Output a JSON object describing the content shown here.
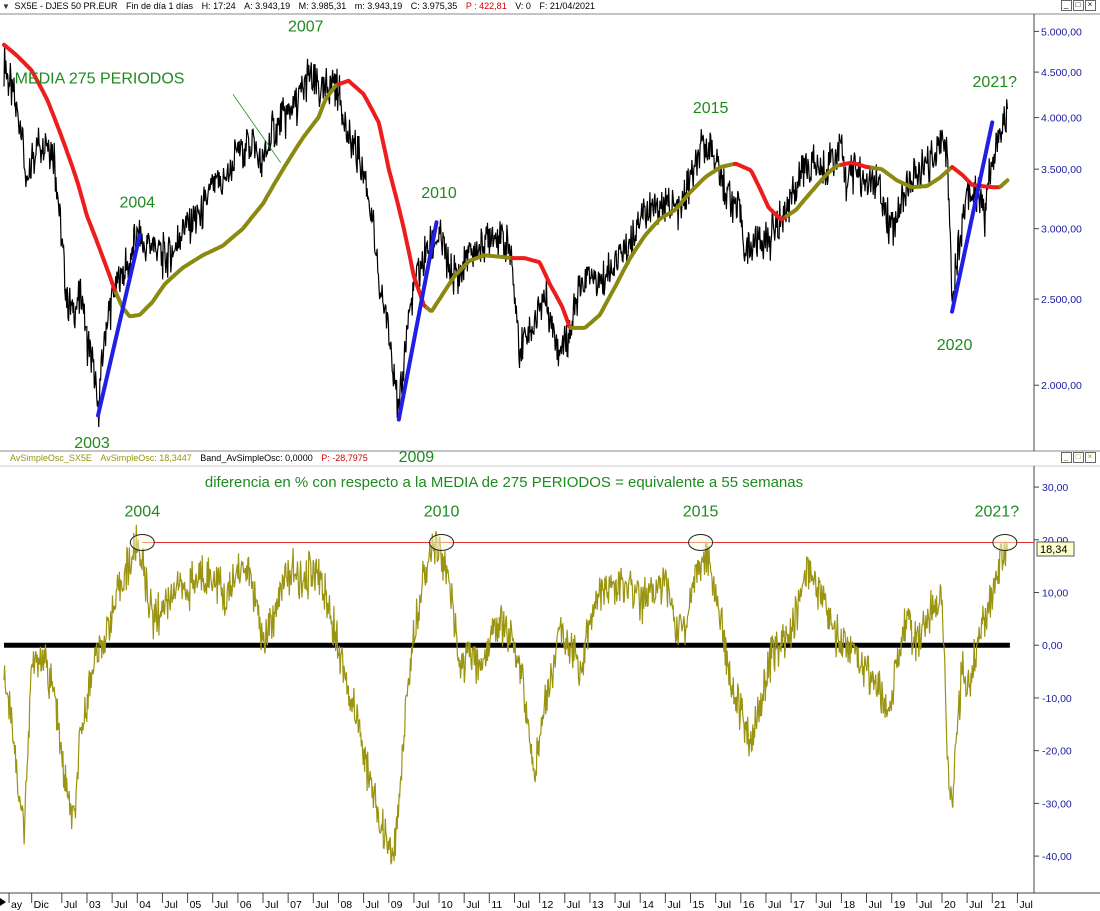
{
  "top_header": {
    "symbol": "SX5E - DJES 50 PR.EUR",
    "period": "Fin de día 1 días",
    "h": "H: 17:24",
    "a": "A: 3.943,19",
    "m": "M: 3.985,31",
    "mm": "m: 3.943,19",
    "c": "C: 3.975,35",
    "p": "P : 422,81",
    "v": "V: 0",
    "f": "F: 21/04/2021"
  },
  "bottom_header": {
    "name": "AvSimpleOsc_SX5E",
    "value_label": "AvSimpleOsc: 18,3447",
    "band": "Band_AvSimpleOsc: 0,0000",
    "p": "P: -28,7975"
  },
  "window_controls": [
    "_",
    "□",
    "×"
  ],
  "colors": {
    "price": "#000000",
    "ma_rising": "#8b8a10",
    "ma_falling": "#ee1c1c",
    "trendline": "#1f1fe6",
    "osc": "#9a9410",
    "annot_text": "#1f8a1f",
    "axis_text": "#1a1aa0",
    "zero_line": "#000000",
    "threshold": "#e03030"
  },
  "chart_data": [
    {
      "type": "line",
      "scale": "log",
      "yticks": [
        "5.000,00",
        "4.500,00",
        "4.000,00",
        "3.500,00",
        "3.000,00",
        "2.500,00",
        "2.000,00"
      ],
      "ytick_values": [
        5000,
        4500,
        4000,
        3500,
        3000,
        2500,
        2000
      ],
      "ylim": [
        1700,
        5150
      ],
      "series": [
        {
          "name": "SX5E",
          "x": [
            2001.35,
            2001.5,
            2001.7,
            2001.8,
            2001.9,
            2002.0,
            2002.2,
            2002.35,
            2002.5,
            2002.6,
            2002.75,
            2002.9,
            2003.0,
            2003.1,
            2003.22,
            2003.35,
            2003.5,
            2003.65,
            2003.8,
            2004.0,
            2004.15,
            2004.3,
            2004.5,
            2004.7,
            2004.85,
            2005.0,
            2005.25,
            2005.5,
            2005.75,
            2006.0,
            2006.3,
            2006.45,
            2006.7,
            2007.0,
            2007.2,
            2007.4,
            2007.55,
            2007.7,
            2007.85,
            2008.0,
            2008.2,
            2008.4,
            2008.6,
            2008.8,
            2008.95,
            2009.1,
            2009.2,
            2009.4,
            2009.6,
            2009.8,
            2010.0,
            2010.2,
            2010.4,
            2010.6,
            2010.8,
            2011.0,
            2011.2,
            2011.4,
            2011.6,
            2011.75,
            2011.9,
            2012.1,
            2012.25,
            2012.4,
            2012.6,
            2012.8,
            2013.0,
            2013.2,
            2013.5,
            2013.8,
            2014.0,
            2014.2,
            2014.5,
            2014.8,
            2015.0,
            2015.2,
            2015.35,
            2015.5,
            2015.65,
            2015.8,
            2016.0,
            2016.1,
            2016.3,
            2016.5,
            2016.7,
            2016.9,
            2017.0,
            2017.2,
            2017.35,
            2017.6,
            2017.8,
            2018.0,
            2018.1,
            2018.3,
            2018.5,
            2018.7,
            2018.9,
            2019.0,
            2019.3,
            2019.5,
            2019.7,
            2019.9,
            2020.0,
            2020.1,
            2020.2,
            2020.3,
            2020.5,
            2020.7,
            2020.85,
            2020.95,
            2021.05,
            2021.15,
            2021.3
          ],
          "y": [
            4600,
            4300,
            3950,
            3300,
            3600,
            3700,
            3800,
            3600,
            2900,
            2500,
            2400,
            2550,
            2250,
            2150,
            1850,
            2250,
            2500,
            2650,
            2700,
            2950,
            2850,
            2900,
            2800,
            2800,
            2950,
            3050,
            3100,
            3350,
            3400,
            3650,
            3800,
            3500,
            3850,
            4050,
            4150,
            4450,
            4350,
            4250,
            4400,
            4300,
            3800,
            3600,
            3300,
            2600,
            2400,
            2100,
            1850,
            2400,
            2700,
            2850,
            2950,
            2700,
            2650,
            2800,
            2850,
            2950,
            2950,
            2850,
            2200,
            2300,
            2350,
            2550,
            2350,
            2200,
            2300,
            2550,
            2650,
            2600,
            2750,
            2900,
            3100,
            3150,
            3200,
            3150,
            3400,
            3650,
            3750,
            3600,
            3350,
            3250,
            3100,
            2800,
            2950,
            2900,
            3000,
            3150,
            3300,
            3450,
            3550,
            3500,
            3600,
            3700,
            3400,
            3500,
            3350,
            3350,
            3100,
            3000,
            3350,
            3450,
            3500,
            3700,
            3800,
            3650,
            2500,
            2800,
            3300,
            3300,
            3100,
            3500,
            3600,
            3850,
            4000
          ]
        },
        {
          "name": "MEDIA 275 PERIODOS",
          "x": [
            2001.35,
            2001.6,
            2001.9,
            2002.2,
            2002.5,
            2002.8,
            2003.0,
            2003.3,
            2003.55,
            2003.7,
            2003.85,
            2004.05,
            2004.3,
            2004.55,
            2004.9,
            2005.3,
            2005.7,
            2006.1,
            2006.5,
            2006.9,
            2007.3,
            2007.6,
            2007.75,
            2007.95,
            2008.2,
            2008.5,
            2008.8,
            2009.0,
            2009.3,
            2009.5,
            2009.7,
            2009.85,
            2010.05,
            2010.3,
            2010.6,
            2010.9,
            2011.2,
            2011.45,
            2011.7,
            2012.0,
            2012.2,
            2012.45,
            2012.6,
            2012.9,
            2013.2,
            2013.5,
            2013.8,
            2014.1,
            2014.4,
            2014.7,
            2015.0,
            2015.3,
            2015.6,
            2015.9,
            2016.2,
            2016.4,
            2016.55,
            2016.8,
            2017.1,
            2017.4,
            2017.7,
            2017.9,
            2018.2,
            2018.5,
            2018.8,
            2019.1,
            2019.4,
            2019.7,
            2019.95,
            2020.2,
            2020.4,
            2020.6,
            2020.8,
            2021.0,
            2021.15,
            2021.3
          ],
          "y": [
            4830,
            4700,
            4520,
            4200,
            3800,
            3400,
            3100,
            2800,
            2560,
            2450,
            2390,
            2400,
            2480,
            2600,
            2710,
            2800,
            2870,
            3000,
            3200,
            3500,
            3800,
            4000,
            4200,
            4350,
            4400,
            4250,
            3950,
            3500,
            3000,
            2650,
            2460,
            2420,
            2520,
            2650,
            2760,
            2800,
            2790,
            2780,
            2780,
            2750,
            2600,
            2450,
            2320,
            2320,
            2400,
            2580,
            2780,
            2950,
            3080,
            3150,
            3300,
            3430,
            3520,
            3550,
            3490,
            3310,
            3170,
            3070,
            3150,
            3300,
            3450,
            3530,
            3560,
            3520,
            3500,
            3400,
            3340,
            3350,
            3420,
            3520,
            3450,
            3360,
            3350,
            3340,
            3340,
            3400
          ],
          "falling_ranges": [
            [
              2001.35,
              2003.55
            ],
            [
              2008.0,
              2009.75
            ],
            [
              2011.45,
              2012.6
            ],
            [
              2015.85,
              2016.9
            ],
            [
              2018.0,
              2018.6
            ],
            [
              2020.2,
              2021.15
            ]
          ]
        }
      ],
      "trendlines": [
        {
          "label": "2003",
          "x": [
            2003.22,
            2004.05
          ],
          "y": [
            1850,
            2950
          ]
        },
        {
          "label": "2009",
          "x": [
            2009.2,
            2009.95
          ],
          "y": [
            1830,
            3050
          ]
        },
        {
          "label": "2020",
          "x": [
            2020.2,
            2021.0
          ],
          "y": [
            2420,
            3950
          ]
        }
      ],
      "annotations": [
        {
          "text": "2007",
          "x": 2007.35,
          "y": 5000
        },
        {
          "text": "MEDIA 275 PERIODOS",
          "x": 2003.25,
          "y": 4370
        },
        {
          "text": "2021?",
          "x": 2021.05,
          "y": 4330
        },
        {
          "text": "2015",
          "x": 2015.4,
          "y": 4050
        },
        {
          "text": "2004",
          "x": 2004.0,
          "y": 3170
        },
        {
          "text": "2010",
          "x": 2010.0,
          "y": 3250
        },
        {
          "text": "2020",
          "x": 2020.25,
          "y": 2190
        },
        {
          "text": "2003",
          "x": 2003.1,
          "y": 1700
        },
        {
          "text": "2009",
          "x": 2009.55,
          "y": 1640
        }
      ]
    },
    {
      "type": "line",
      "title": "diferencia en % con respecto a la MEDIA de 275 PERIODOS = equivalente a 55 semanas",
      "yticks": [
        "30,00",
        "20,00",
        "10,00",
        "0,00",
        "-10,00",
        "-20,00",
        "-30,00",
        "-40,00"
      ],
      "ytick_values": [
        30,
        20,
        10,
        0,
        -10,
        -20,
        -30,
        -40
      ],
      "ylim": [
        -47,
        34
      ],
      "current_value": "18,34",
      "zero_line": 0,
      "threshold": 19.5,
      "series": [
        {
          "name": "AvSimpleOsc_SX5E",
          "x": [
            2001.35,
            2001.5,
            2001.65,
            2001.75,
            2001.9,
            2002.0,
            2002.2,
            2002.35,
            2002.5,
            2002.65,
            2002.75,
            2002.85,
            2003.0,
            2003.15,
            2003.3,
            2003.5,
            2003.7,
            2003.9,
            2004.0,
            2004.1,
            2004.2,
            2004.3,
            2004.45,
            2004.6,
            2004.8,
            2005.0,
            2005.2,
            2005.5,
            2005.75,
            2006.0,
            2006.2,
            2006.35,
            2006.5,
            2006.7,
            2006.9,
            2007.1,
            2007.3,
            2007.5,
            2007.65,
            2007.8,
            2008.0,
            2008.2,
            2008.4,
            2008.6,
            2008.8,
            2009.0,
            2009.1,
            2009.2,
            2009.35,
            2009.5,
            2009.65,
            2009.8,
            2009.95,
            2010.1,
            2010.25,
            2010.4,
            2010.6,
            2010.8,
            2011.0,
            2011.2,
            2011.4,
            2011.6,
            2011.75,
            2011.9,
            2012.1,
            2012.25,
            2012.4,
            2012.6,
            2012.8,
            2013.0,
            2013.2,
            2013.5,
            2013.8,
            2014.0,
            2014.2,
            2014.5,
            2014.7,
            2014.9,
            2015.1,
            2015.3,
            2015.45,
            2015.6,
            2015.75,
            2015.9,
            2016.05,
            2016.2,
            2016.4,
            2016.6,
            2016.8,
            2017.0,
            2017.15,
            2017.3,
            2017.5,
            2017.7,
            2017.9,
            2018.1,
            2018.3,
            2018.5,
            2018.7,
            2018.9,
            2019.1,
            2019.3,
            2019.5,
            2019.7,
            2019.9,
            2020.0,
            2020.1,
            2020.2,
            2020.3,
            2020.4,
            2020.55,
            2020.7,
            2020.85,
            2021.0,
            2021.15,
            2021.3
          ],
          "y": [
            -6,
            -12,
            -28,
            -35,
            -5,
            -2,
            -4,
            -10,
            -22,
            -30,
            -33,
            -20,
            -10,
            -3,
            0,
            6,
            12,
            17,
            19,
            16,
            10,
            5,
            6,
            9,
            12,
            10,
            13,
            14,
            8,
            14,
            15,
            8,
            0,
            5,
            12,
            14,
            11,
            15,
            12,
            8,
            0,
            -8,
            -15,
            -25,
            -33,
            -38,
            -41,
            -30,
            -10,
            2,
            12,
            17,
            19,
            16,
            8,
            -4,
            -2,
            -4,
            0,
            5,
            2,
            -2,
            -15,
            -25,
            -10,
            -5,
            2,
            0,
            -5,
            5,
            10,
            11,
            12,
            8,
            10,
            12,
            4,
            4,
            14,
            17,
            12,
            5,
            -4,
            -10,
            -15,
            -20,
            -10,
            -2,
            0,
            2,
            8,
            15,
            12,
            7,
            2,
            0,
            -2,
            -5,
            -8,
            -12,
            -4,
            5,
            0,
            5,
            8,
            10,
            -20,
            -32,
            -15,
            -5,
            -8,
            0,
            5,
            10,
            15,
            19
          ]
        }
      ],
      "markers": [
        {
          "label": "2004",
          "x": 2004.1,
          "y": 19.5
        },
        {
          "label": "2010",
          "x": 2010.05,
          "y": 19.5
        },
        {
          "label": "2015",
          "x": 2015.2,
          "y": 19.5
        },
        {
          "label": "2021?",
          "x": 2021.25,
          "y": 19.5
        }
      ]
    }
  ],
  "x_axis": {
    "range": [
      2001.35,
      2021.75
    ],
    "ticks": [
      {
        "label": "ay",
        "x": 2001.45
      },
      {
        "label": "Dic",
        "x": 2001.9
      },
      {
        "label": "Jul",
        "x": 2002.5
      },
      {
        "label": "03",
        "x": 2003.0
      },
      {
        "label": "Jul",
        "x": 2003.5
      },
      {
        "label": "04",
        "x": 2004.0
      },
      {
        "label": "Jul",
        "x": 2004.5
      },
      {
        "label": "05",
        "x": 2005.0
      },
      {
        "label": "Jul",
        "x": 2005.5
      },
      {
        "label": "06",
        "x": 2006.0
      },
      {
        "label": "Jul",
        "x": 2006.5
      },
      {
        "label": "07",
        "x": 2007.0
      },
      {
        "label": "Jul",
        "x": 2007.5
      },
      {
        "label": "08",
        "x": 2008.0
      },
      {
        "label": "Jul",
        "x": 2008.5
      },
      {
        "label": "09",
        "x": 2009.0
      },
      {
        "label": "Jul",
        "x": 2009.5
      },
      {
        "label": "10",
        "x": 2010.0
      },
      {
        "label": "Jul",
        "x": 2010.5
      },
      {
        "label": "11",
        "x": 2011.0
      },
      {
        "label": "Jul",
        "x": 2011.5
      },
      {
        "label": "12",
        "x": 2012.0
      },
      {
        "label": "Jul",
        "x": 2012.5
      },
      {
        "label": "13",
        "x": 2013.0
      },
      {
        "label": "Jul",
        "x": 2013.5
      },
      {
        "label": "14",
        "x": 2014.0
      },
      {
        "label": "Jul",
        "x": 2014.5
      },
      {
        "label": "15",
        "x": 2015.0
      },
      {
        "label": "Jul",
        "x": 2015.5
      },
      {
        "label": "16",
        "x": 2016.0
      },
      {
        "label": "Jul",
        "x": 2016.5
      },
      {
        "label": "17",
        "x": 2017.0
      },
      {
        "label": "Jul",
        "x": 2017.5
      },
      {
        "label": "18",
        "x": 2018.0
      },
      {
        "label": "Jul",
        "x": 2018.5
      },
      {
        "label": "19",
        "x": 2019.0
      },
      {
        "label": "Jul",
        "x": 2019.5
      },
      {
        "label": "20",
        "x": 2020.0
      },
      {
        "label": "Jul",
        "x": 2020.5
      },
      {
        "label": "21",
        "x": 2021.0
      },
      {
        "label": "Jul",
        "x": 2021.5
      }
    ]
  }
}
